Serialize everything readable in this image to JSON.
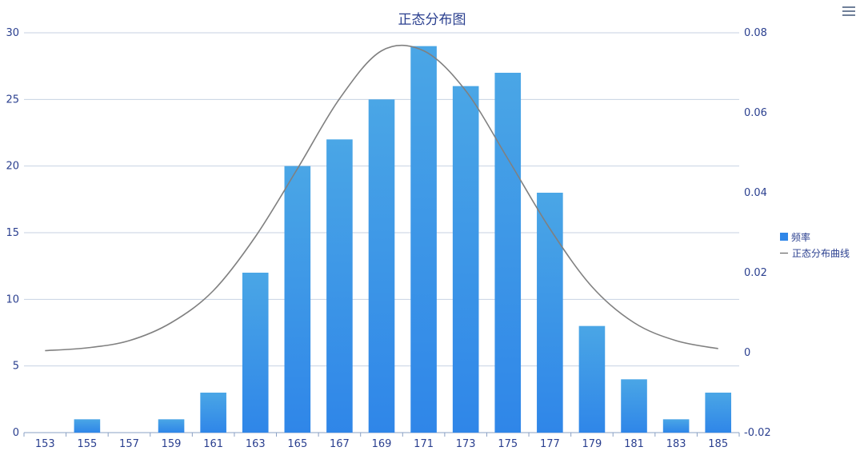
{
  "chart_data": {
    "type": "bar",
    "title": "正态分布图",
    "categories": [
      "153",
      "155",
      "157",
      "159",
      "161",
      "163",
      "165",
      "167",
      "169",
      "171",
      "173",
      "175",
      "177",
      "179",
      "181",
      "183",
      "185"
    ],
    "series": [
      {
        "name": "频率",
        "type": "bar",
        "axis": "left",
        "color": "#3b8fe4",
        "values": [
          0,
          1,
          0,
          1,
          3,
          12,
          20,
          22,
          25,
          29,
          26,
          27,
          18,
          8,
          4,
          1,
          3
        ]
      },
      {
        "name": "正态分布曲线",
        "type": "line",
        "axis": "right",
        "color": "#808080",
        "values": [
          0.0005,
          0.0012,
          0.003,
          0.0075,
          0.0155,
          0.029,
          0.046,
          0.0635,
          0.0755,
          0.0755,
          0.0655,
          0.0485,
          0.031,
          0.0165,
          0.0075,
          0.003,
          0.001
        ]
      }
    ],
    "y_left": {
      "min": 0,
      "max": 30,
      "ticks": [
        "0",
        "5",
        "10",
        "15",
        "20",
        "25",
        "30"
      ]
    },
    "y_right": {
      "min": -0.02,
      "max": 0.08,
      "ticks": [
        "-0.02",
        "0",
        "0.02",
        "0.04",
        "0.06",
        "0.08"
      ]
    },
    "grid": true,
    "legend_position": "right"
  },
  "legend": {
    "bar_label": "频率",
    "line_label": "正态分布曲线"
  },
  "icons": {
    "menu": "menu-icon"
  }
}
